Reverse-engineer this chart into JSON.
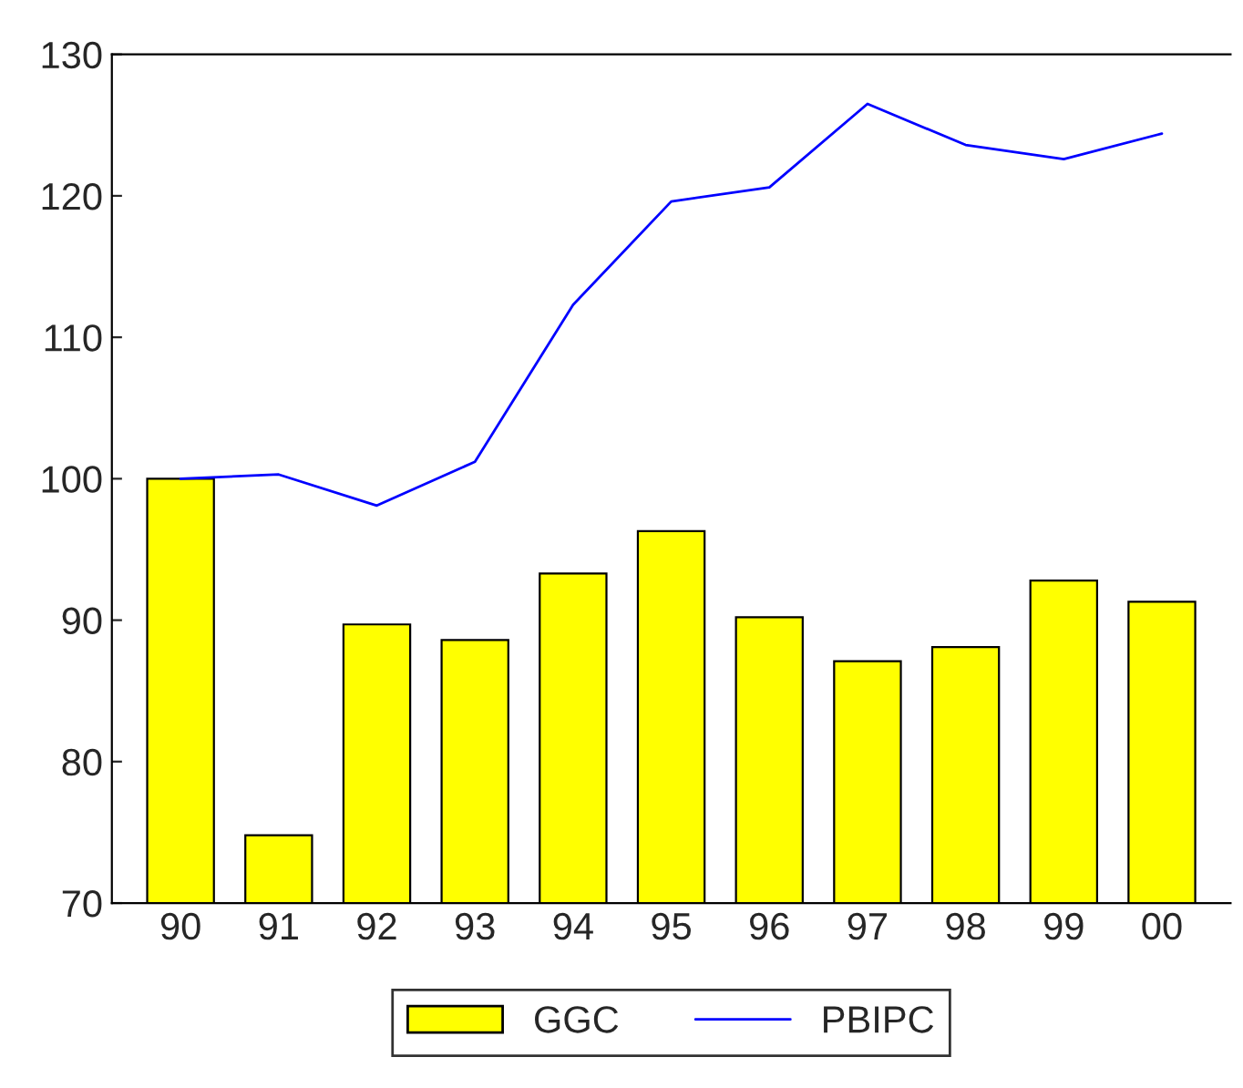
{
  "chart_data": {
    "type": "bar",
    "categories": [
      "90",
      "91",
      "92",
      "93",
      "94",
      "95",
      "96",
      "97",
      "98",
      "99",
      "00"
    ],
    "series": [
      {
        "name": "GGC",
        "color": "#ffff00",
        "values": [
          100,
          74.8,
          89.7,
          88.6,
          93.3,
          96.3,
          90.2,
          87.1,
          88.1,
          92.8,
          91.3
        ]
      },
      {
        "name": "PBIPC",
        "type": "line",
        "color": "#0000ff",
        "values": [
          100,
          100.3,
          98.1,
          101.2,
          112.3,
          119.6,
          120.6,
          126.5,
          123.6,
          122.6,
          124.4
        ]
      }
    ],
    "ylim": [
      70,
      130
    ],
    "yticks": [
      70,
      80,
      90,
      100,
      110,
      120,
      130
    ],
    "grid": false,
    "legend": "bottom"
  }
}
